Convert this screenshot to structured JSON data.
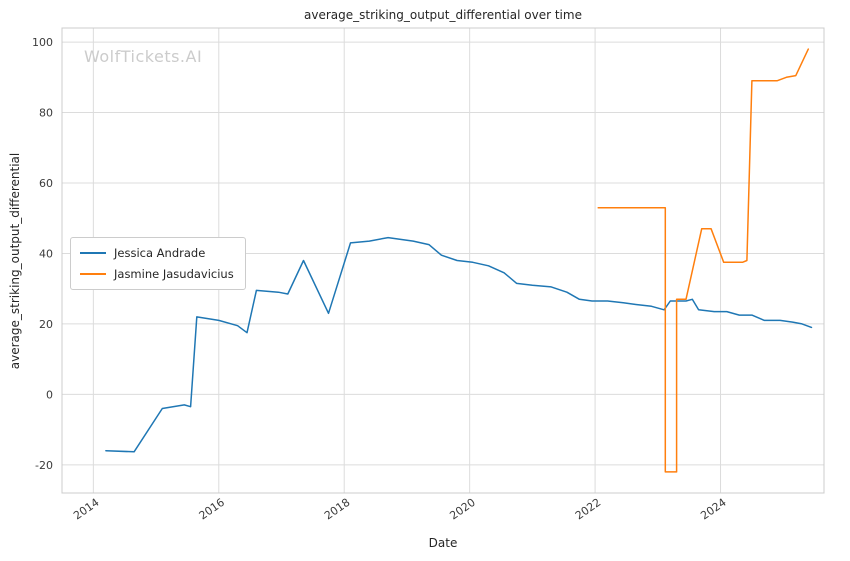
{
  "chart_data": {
    "type": "line",
    "title": "average_striking_output_differential over time",
    "xlabel": "Date",
    "ylabel": "average_striking_output_differential",
    "watermark": "WolfTickets.AI",
    "xlim": [
      2013.5,
      2025.65
    ],
    "ylim": [
      -28,
      104
    ],
    "xticks": [
      2014,
      2016,
      2018,
      2020,
      2022,
      2024
    ],
    "yticks": [
      -20,
      0,
      20,
      40,
      60,
      80,
      100
    ],
    "grid": true,
    "grid_color": "#dcdcdc",
    "spine_color": "#cccccc",
    "background": "#ffffff",
    "legend_position": "center-left",
    "series": [
      {
        "name": "Jessica Andrade",
        "color": "#1f77b4",
        "x": [
          2014.2,
          2014.65,
          2015.1,
          2015.45,
          2015.55,
          2015.65,
          2016.0,
          2016.3,
          2016.45,
          2016.6,
          2016.95,
          2017.1,
          2017.35,
          2017.75,
          2018.1,
          2018.4,
          2018.7,
          2019.1,
          2019.35,
          2019.55,
          2019.8,
          2020.05,
          2020.3,
          2020.55,
          2020.75,
          2021.0,
          2021.3,
          2021.55,
          2021.75,
          2021.95,
          2022.2,
          2022.45,
          2022.65,
          2022.9,
          2023.1,
          2023.2,
          2023.45,
          2023.55,
          2023.65,
          2023.9,
          2024.1,
          2024.3,
          2024.5,
          2024.7,
          2024.95,
          2025.15,
          2025.3,
          2025.45
        ],
        "y": [
          -16,
          -16.3,
          -4,
          -3,
          -3.5,
          22,
          21,
          19.5,
          17.5,
          29.5,
          29,
          28.5,
          38,
          23,
          43,
          43.5,
          44.5,
          43.5,
          42.5,
          39.5,
          38,
          37.5,
          36.5,
          34.5,
          31.5,
          31,
          30.5,
          29,
          27,
          26.5,
          26.5,
          26,
          25.5,
          25,
          24,
          26.5,
          26.5,
          27,
          24,
          23.5,
          23.5,
          22.5,
          22.5,
          21,
          21,
          20.5,
          20,
          19
        ]
      },
      {
        "name": "Jasmine Jasudavicius",
        "color": "#ff7f0e",
        "x": [
          2022.05,
          2023.12,
          2023.12,
          2023.3,
          2023.3,
          2023.45,
          2023.7,
          2023.85,
          2024.05,
          2024.35,
          2024.42,
          2024.5,
          2024.9,
          2025.05,
          2025.2,
          2025.4
        ],
        "y": [
          53,
          53,
          -22,
          -22,
          27,
          27,
          47,
          47,
          37.5,
          37.5,
          38,
          89,
          89,
          90,
          90.5,
          98
        ]
      }
    ]
  }
}
